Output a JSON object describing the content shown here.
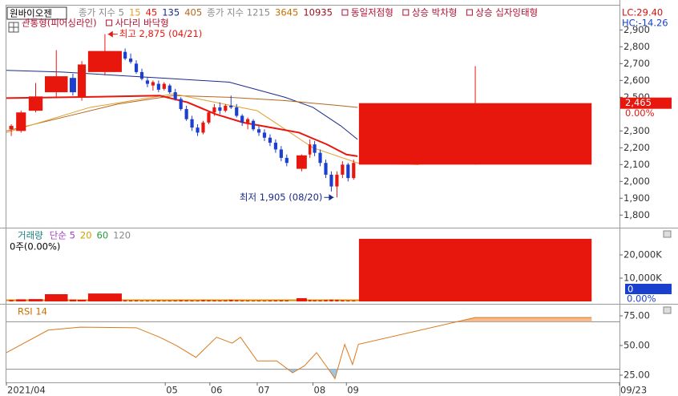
{
  "chart_data": [
    {
      "type": "candlestick",
      "title": "원바이오젠",
      "legend": [
        {
          "label": "종가 지수 5",
          "color": "#8a8a8a"
        },
        {
          "label": "15",
          "color": "#e0a030"
        },
        {
          "label": "45",
          "color": "#e8170d"
        },
        {
          "label": "135",
          "color": "#1a2a8a"
        },
        {
          "label": "405",
          "color": "#b5651d"
        },
        {
          "label": "종가 지수 1215",
          "color": "#8a8a8a"
        },
        {
          "label": "3645",
          "color": "#c87000"
        },
        {
          "label": "10935",
          "color": "#9a1020"
        }
      ],
      "patterns": [
        "동일저점형",
        "상승 박차형",
        "상승 십자잉태형",
        "관통형(피어싱라인)",
        "사다리 바닥형"
      ],
      "pattern_color": "#b01030",
      "lc_label": "LC:29.40",
      "hc_label": "HC:-14.26",
      "up_color": "#e8170d",
      "down_color": "#1c3fd0",
      "xlim": [
        0,
        220
      ],
      "ylim": [
        1730,
        3040
      ],
      "yticks": [
        {
          "value": 1800,
          "label": "1,800"
        },
        {
          "value": 1900,
          "label": "1,900"
        },
        {
          "value": 2000,
          "label": "2,000"
        },
        {
          "value": 2100,
          "label": "2,100"
        },
        {
          "value": 2200,
          "label": "2,200"
        },
        {
          "value": 2300,
          "label": "2,300"
        },
        {
          "value": 2500,
          "label": "2,500"
        },
        {
          "value": 2600,
          "label": "2,600"
        },
        {
          "value": 2700,
          "label": "2,700"
        },
        {
          "value": 2800,
          "label": "2,800"
        },
        {
          "value": 2900,
          "label": "2,900"
        }
      ],
      "last_value": {
        "value": 2465,
        "label": "2,465"
      },
      "change_label": "0.00%",
      "annotations": [
        {
          "text": "최고 2,875 (04/21)",
          "x": 35.3,
          "y": 2875,
          "color": "#e8170d"
        },
        {
          "text": "최저 1,905 (08/20)",
          "x": 118.6,
          "y": 1905,
          "color": "#1a2a8a"
        }
      ],
      "x_start": [
        1,
        3.5,
        8,
        13.8,
        22.7,
        25.6,
        29.3,
        42,
        44,
        46,
        48,
        50,
        52,
        54,
        56,
        58,
        60,
        62,
        64,
        66,
        68,
        70,
        72,
        74,
        76,
        78,
        80,
        82,
        84,
        86,
        88,
        90,
        92,
        94,
        96,
        98,
        100,
        104.1,
        108.4,
        110,
        112,
        114,
        116,
        118,
        120,
        122,
        124,
        126.5
      ],
      "x_end": [
        2.5,
        7,
        13,
        22,
        25,
        28.5,
        41.4,
        43.2,
        45.2,
        47.2,
        49.2,
        51.2,
        53.2,
        55.2,
        57.2,
        59.2,
        61.2,
        63.2,
        65.2,
        67.2,
        69.2,
        71.2,
        73.2,
        75.2,
        77.2,
        79.2,
        81.2,
        83.2,
        85.2,
        87.2,
        89.2,
        91.2,
        93.2,
        95.2,
        97.2,
        99.2,
        101.2,
        107.8,
        109.4,
        111.2,
        113.2,
        115.2,
        117.2,
        119.2,
        121.2,
        123.2,
        125.2,
        210
      ],
      "open": [
        2310,
        2300,
        2420,
        2530,
        2615,
        2500,
        2650,
        2770,
        2730,
        2700,
        2650,
        2600,
        2570,
        2580,
        2550,
        2570,
        2530,
        2490,
        2430,
        2370,
        2320,
        2290,
        2350,
        2410,
        2440,
        2420,
        2450,
        2440,
        2390,
        2350,
        2360,
        2310,
        2290,
        2260,
        2230,
        2190,
        2140,
        2075,
        2160,
        2220,
        2170,
        2110,
        2040,
        1970,
        2040,
        2100,
        2020,
        2100
      ],
      "high": [
        2340,
        2420,
        2585,
        2780,
        2640,
        2715,
        2875,
        2790,
        2760,
        2720,
        2670,
        2620,
        2600,
        2600,
        2590,
        2580,
        2550,
        2500,
        2450,
        2390,
        2340,
        2360,
        2420,
        2460,
        2470,
        2460,
        2510,
        2460,
        2400,
        2380,
        2370,
        2330,
        2310,
        2280,
        2250,
        2210,
        2160,
        2160,
        2250,
        2240,
        2190,
        2130,
        2060,
        2060,
        2120,
        2110,
        2130,
        2685
      ],
      "low": [
        2270,
        2290,
        2410,
        2500,
        2510,
        2480,
        2630,
        2720,
        2700,
        2640,
        2600,
        2560,
        2540,
        2530,
        2540,
        2520,
        2480,
        2420,
        2360,
        2300,
        2270,
        2280,
        2340,
        2390,
        2400,
        2410,
        2430,
        2380,
        2330,
        2310,
        2300,
        2270,
        2240,
        2210,
        2170,
        2120,
        2090,
        2060,
        2140,
        2150,
        2090,
        2020,
        1940,
        1905,
        2020,
        2000,
        2010,
        2100
      ],
      "close": [
        2330,
        2410,
        2505,
        2625,
        2530,
        2695,
        2775,
        2730,
        2710,
        2650,
        2610,
        2580,
        2590,
        2545,
        2580,
        2530,
        2490,
        2430,
        2370,
        2320,
        2290,
        2350,
        2410,
        2440,
        2420,
        2450,
        2440,
        2390,
        2350,
        2370,
        2310,
        2290,
        2260,
        2230,
        2190,
        2140,
        2110,
        2155,
        2220,
        2170,
        2110,
        2040,
        1970,
        2040,
        2100,
        2020,
        2110,
        2465
      ],
      "overlays": [
        {
          "color": "#1a2a8a",
          "x": [
            0,
            20,
            40,
            60,
            80,
            100,
            110,
            120,
            126
          ],
          "values": [
            2660,
            2650,
            2630,
            2610,
            2590,
            2500,
            2440,
            2330,
            2250
          ]
        },
        {
          "color": "#b5651d",
          "x": [
            0,
            20,
            40,
            60,
            80,
            100,
            120,
            126
          ],
          "values": [
            2300,
            2380,
            2460,
            2510,
            2500,
            2480,
            2450,
            2440
          ]
        },
        {
          "color": "#e0a030",
          "x": [
            0,
            30,
            60,
            90,
            110,
            126,
            148
          ],
          "values": [
            2290,
            2440,
            2520,
            2420,
            2200,
            2110,
            2100
          ]
        },
        {
          "color": "#e8170d",
          "x": [
            0,
            20,
            40,
            55,
            65,
            75,
            85,
            95,
            105,
            115,
            122,
            126
          ],
          "values": [
            2495,
            2500,
            2505,
            2510,
            2470,
            2400,
            2350,
            2320,
            2290,
            2220,
            2160,
            2150
          ]
        }
      ]
    },
    {
      "type": "bar",
      "title": "거래량",
      "title_color": "#208080",
      "legend": [
        {
          "label": "단순 5",
          "color": "#a040c0"
        },
        {
          "label": "20",
          "color": "#d0a000"
        },
        {
          "label": "60",
          "color": "#20a040"
        },
        {
          "label": "120",
          "color": "#888888"
        }
      ],
      "subtitle": "0주(0.00%)",
      "color": "#e8170d",
      "xlim": [
        0,
        220
      ],
      "ylim": [
        0,
        31000
      ],
      "yticks": [
        {
          "value": 10000,
          "label": "10,000K"
        },
        {
          "value": 20000,
          "label": "20,000K"
        }
      ],
      "last_value": 0,
      "change_label": "0.00%",
      "x_start": [
        1,
        3.5,
        8,
        13.8,
        22.7,
        25.6,
        29.3,
        42,
        44,
        46,
        48,
        50,
        52,
        54,
        56,
        58,
        60,
        62,
        64,
        66,
        68,
        70,
        72,
        74,
        76,
        78,
        80,
        82,
        84,
        86,
        88,
        90,
        92,
        94,
        96,
        98,
        100,
        104.1,
        108.4,
        110,
        112,
        114,
        116,
        118,
        120,
        122,
        124,
        126.5
      ],
      "x_end": [
        2.5,
        7,
        13,
        22,
        25,
        28.5,
        41.4,
        43.2,
        45.2,
        47.2,
        49.2,
        51.2,
        53.2,
        55.2,
        57.2,
        59.2,
        61.2,
        63.2,
        65.2,
        67.2,
        69.2,
        71.2,
        73.2,
        75.2,
        77.2,
        79.2,
        81.2,
        83.2,
        85.2,
        87.2,
        89.2,
        91.2,
        93.2,
        95.2,
        97.2,
        99.2,
        101.2,
        107.8,
        109.4,
        111.2,
        113.2,
        115.2,
        117.2,
        119.2,
        121.2,
        123.2,
        125.2,
        210
      ],
      "values": [
        600,
        900,
        1000,
        3100,
        800,
        700,
        3400,
        500,
        400,
        450,
        300,
        350,
        300,
        400,
        300,
        350,
        400,
        500,
        450,
        400,
        350,
        600,
        500,
        450,
        400,
        450,
        700,
        500,
        400,
        350,
        300,
        350,
        300,
        400,
        450,
        500,
        450,
        1400,
        600,
        500,
        450,
        600,
        800,
        700,
        500,
        400,
        400,
        26900
      ],
      "overlays": [
        {
          "color": "#e0208a",
          "x": [
            0,
            126.5,
            168,
            210
          ],
          "values": [
            300,
            300,
            4800,
            4800
          ]
        },
        {
          "color": "#d0a000",
          "x": [
            0,
            126.5,
            210
          ],
          "values": [
            500,
            500,
            1000
          ]
        }
      ]
    },
    {
      "type": "line",
      "title": "RSI 14",
      "title_color": "#c87000",
      "color": "#d97a1e",
      "xlim": [
        0,
        220
      ],
      "ylim": [
        19.6,
        83.8
      ],
      "levels": [
        30,
        70
      ],
      "yticks": [
        {
          "value": 25,
          "label": "25.00"
        },
        {
          "value": 50,
          "label": "50.00"
        },
        {
          "value": 75,
          "label": "75.00"
        }
      ],
      "xticks": [
        {
          "value": 0,
          "label": "2021/04"
        },
        {
          "value": 57,
          "label": "05"
        },
        {
          "value": 73,
          "label": "06"
        },
        {
          "value": 90,
          "label": "07"
        },
        {
          "value": 110,
          "label": "08"
        },
        {
          "value": 122,
          "label": "09"
        },
        {
          "value": 220,
          "label": "09/23"
        }
      ],
      "x": [
        0,
        15,
        26.5,
        46.6,
        55,
        61,
        68,
        75.4,
        81,
        84,
        90,
        97,
        102.7,
        107,
        111.3,
        115.6,
        117.9,
        121.4,
        124.2,
        126.3,
        168.2,
        210
      ],
      "values": [
        44,
        63,
        65.5,
        65,
        57,
        50,
        40,
        57,
        52,
        57,
        37,
        37,
        27,
        33,
        44,
        30,
        22,
        51,
        34,
        51,
        73.6,
        73.6
      ]
    }
  ]
}
